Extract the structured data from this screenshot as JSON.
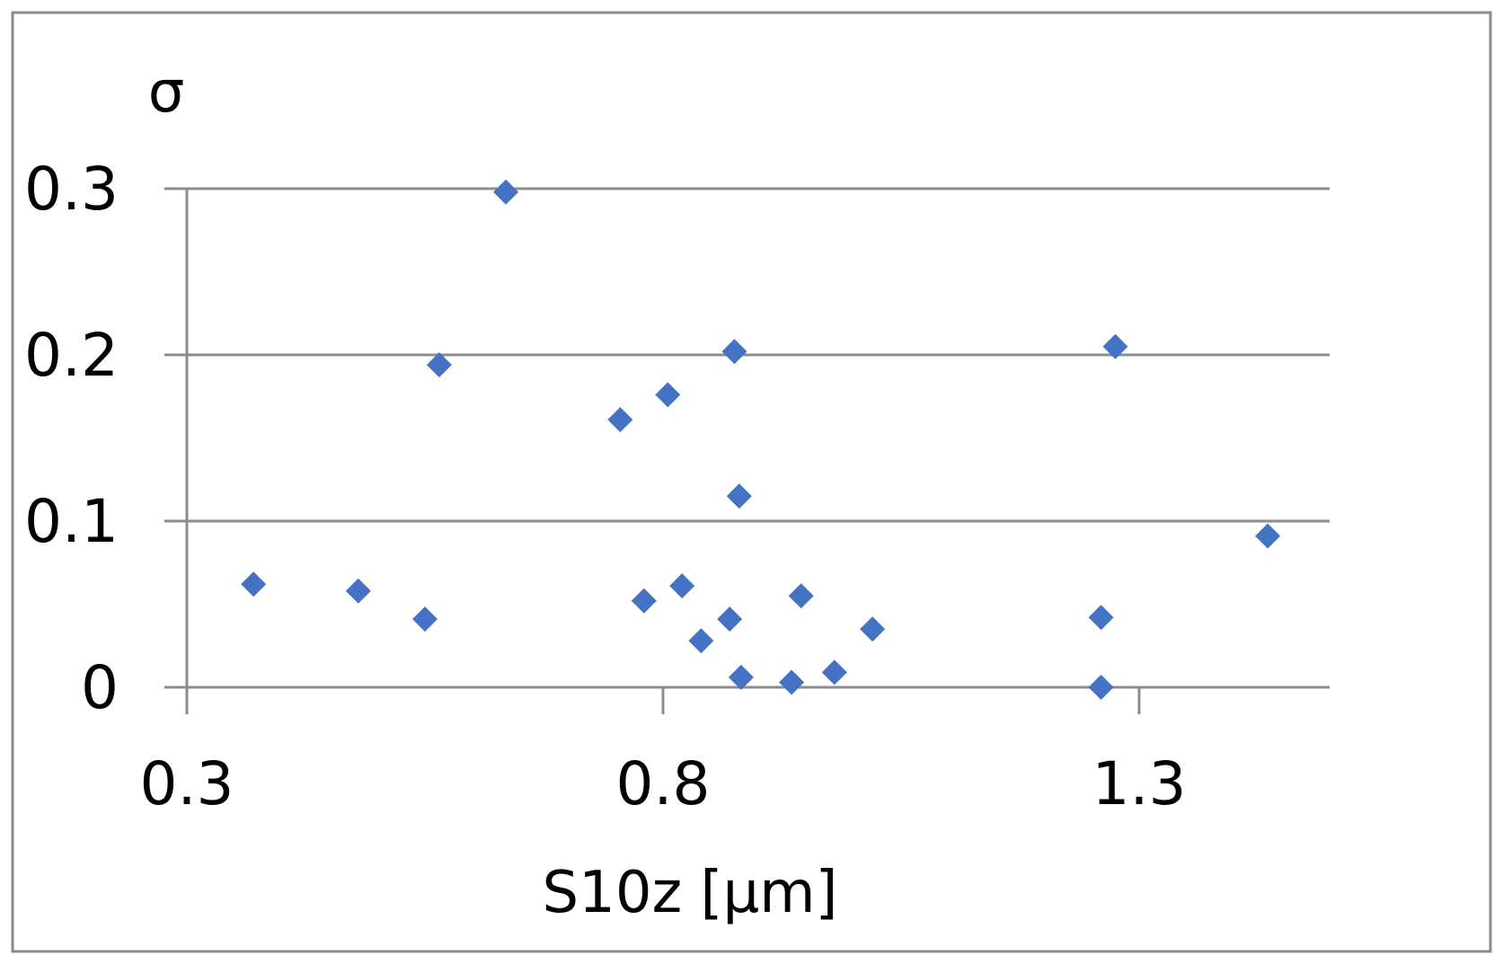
{
  "chart_data": {
    "type": "scatter",
    "title": "",
    "xlabel": "S10z [µm]",
    "ylabel": "σ",
    "xlim": [
      0.3,
      1.5
    ],
    "ylim": [
      0,
      0.3
    ],
    "x_ticks": [
      0.3,
      0.8,
      1.3
    ],
    "x_tick_labels": [
      "0.3",
      "0.8",
      "1.3"
    ],
    "y_ticks": [
      0,
      0.1,
      0.2,
      0.3
    ],
    "y_tick_labels": [
      "0",
      "0.1",
      "0.2",
      "0.3"
    ],
    "grid": "horizontal",
    "legend": "none",
    "marker": "diamond",
    "color": "#4472c4",
    "series": [
      {
        "points": [
          [
            0.37,
            0.062
          ],
          [
            0.48,
            0.058
          ],
          [
            0.55,
            0.041
          ],
          [
            0.565,
            0.194
          ],
          [
            0.635,
            0.298
          ],
          [
            0.755,
            0.161
          ],
          [
            0.78,
            0.052
          ],
          [
            0.805,
            0.176
          ],
          [
            0.82,
            0.061
          ],
          [
            0.84,
            0.028
          ],
          [
            0.87,
            0.041
          ],
          [
            0.875,
            0.202
          ],
          [
            0.88,
            0.115
          ],
          [
            0.882,
            0.006
          ],
          [
            0.935,
            0.003
          ],
          [
            0.945,
            0.055
          ],
          [
            0.98,
            0.009
          ],
          [
            1.02,
            0.035
          ],
          [
            1.26,
            0.042
          ],
          [
            1.26,
            0.0
          ],
          [
            1.275,
            0.205
          ],
          [
            1.435,
            0.091
          ]
        ]
      }
    ]
  }
}
